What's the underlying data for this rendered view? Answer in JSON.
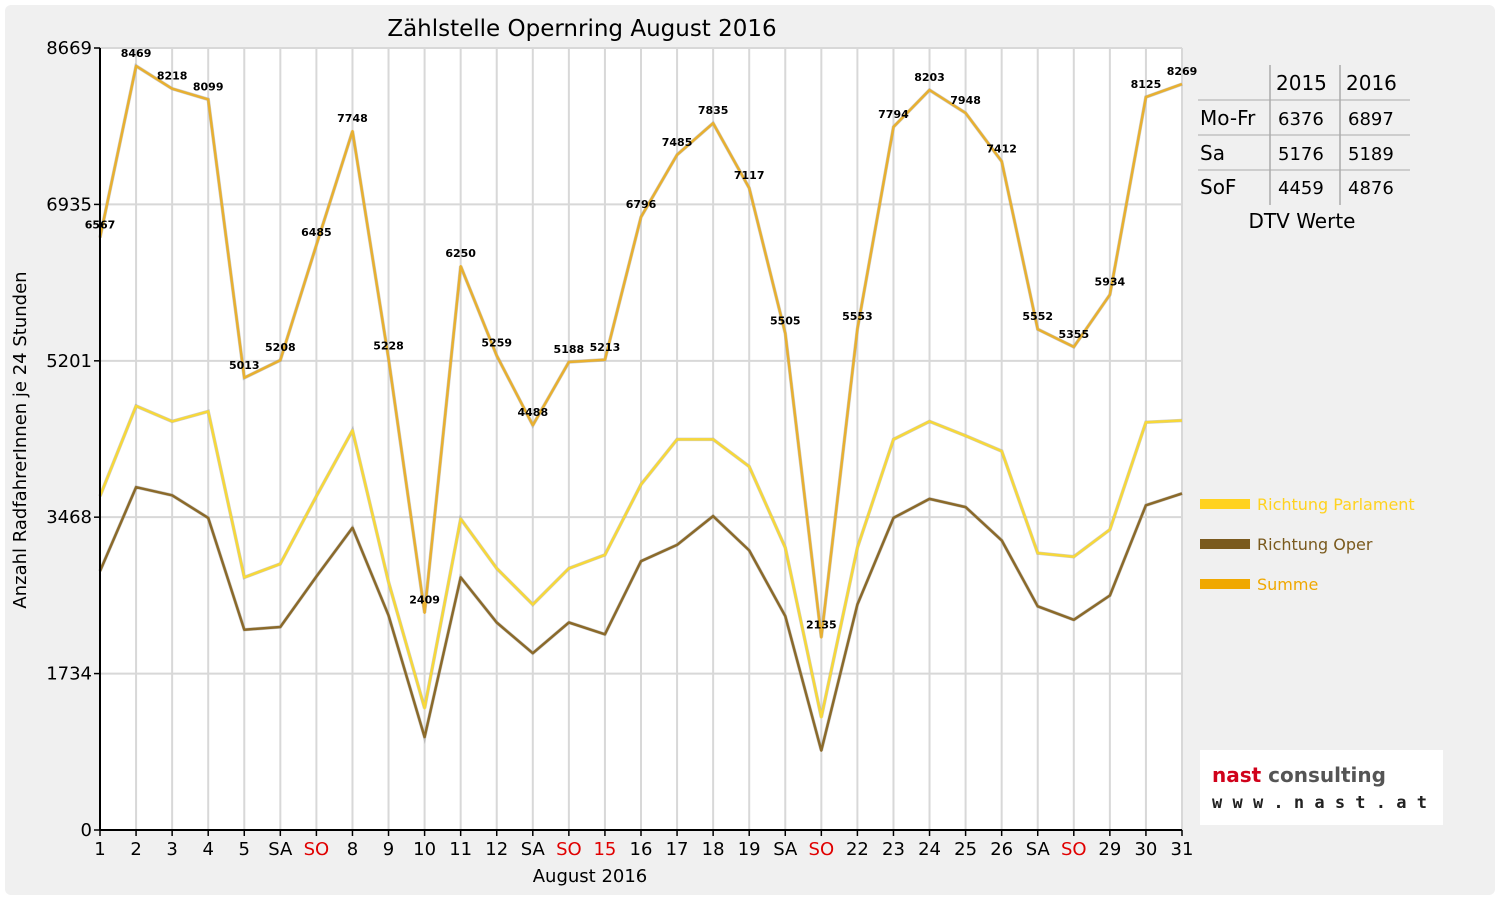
{
  "chart_data": {
    "type": "line",
    "title": "Zählstelle Opernring August 2016",
    "xlabel": "August 2016",
    "ylabel": "Anzahl RadfahrerInnen je 24 Stunden",
    "ylim": [
      0,
      8669
    ],
    "yticks": [
      0,
      1734,
      3468,
      5201,
      6935,
      8669
    ],
    "grid": true,
    "legend_position": "right",
    "categories": [
      "1",
      "2",
      "3",
      "4",
      "5",
      "SA",
      "SO",
      "8",
      "9",
      "10",
      "11",
      "12",
      "SA",
      "SO",
      "15",
      "16",
      "17",
      "18",
      "19",
      "SA",
      "SO",
      "22",
      "23",
      "24",
      "25",
      "26",
      "SA",
      "SO",
      "29",
      "30",
      "31"
    ],
    "category_colors": [
      "#000000",
      "#000000",
      "#000000",
      "#000000",
      "#000000",
      "#000000",
      "#e00000",
      "#000000",
      "#000000",
      "#000000",
      "#000000",
      "#000000",
      "#000000",
      "#e00000",
      "#e00000",
      "#000000",
      "#000000",
      "#000000",
      "#000000",
      "#000000",
      "#e00000",
      "#000000",
      "#000000",
      "#000000",
      "#000000",
      "#000000",
      "#000000",
      "#e00000",
      "#000000",
      "#000000",
      "#000000"
    ],
    "series": [
      {
        "name": "Richtung Parlament",
        "color": "#ffd21f",
        "line_color": "#f7d83a",
        "values": [
          3700,
          4700,
          4530,
          4640,
          2800,
          2950,
          3700,
          4430,
          2750,
          1350,
          3450,
          2900,
          2500,
          2900,
          3050,
          3830,
          4330,
          4330,
          4030,
          3130,
          1250,
          3130,
          4330,
          4530,
          4370,
          4200,
          3070,
          3030,
          3330,
          4520,
          4540
        ]
      },
      {
        "name": "Richtung Oper",
        "color": "#7a5a1e",
        "line_color": "#8b6a2a",
        "values": [
          2870,
          3800,
          3710,
          3460,
          2220,
          2250,
          2810,
          3350,
          2380,
          1030,
          2800,
          2300,
          1960,
          2300,
          2170,
          2980,
          3160,
          3480,
          3100,
          2370,
          880,
          2500,
          3460,
          3670,
          3580,
          3210,
          2480,
          2330,
          2600,
          3600,
          3730
        ]
      },
      {
        "name": "Summe",
        "color": "#f0a800",
        "line_color": "#e8b030",
        "values": [
          6567,
          8469,
          8218,
          8099,
          5013,
          5208,
          6485,
          7748,
          5228,
          2409,
          6250,
          5259,
          4488,
          5188,
          5213,
          6796,
          7485,
          7835,
          7117,
          5505,
          2135,
          5553,
          7794,
          8203,
          7948,
          7412,
          5552,
          5355,
          5934,
          8125,
          8269
        ],
        "labels": [
          "6567",
          "8469",
          "8218",
          "8099",
          "5013",
          "5208",
          "6485",
          "7748",
          "5228",
          "2409",
          "6250",
          "5259",
          "4488",
          "5188",
          "5213",
          "6796",
          "7485",
          "7835",
          "7117",
          "5505",
          "2135",
          "5553",
          "7794",
          "8203",
          "7948",
          "7412",
          "5552",
          "5355",
          "5934",
          "8125",
          "8269"
        ]
      }
    ]
  },
  "dtv_table": {
    "headers": [
      "",
      "2015",
      "2016"
    ],
    "rows": [
      [
        "Mo-Fr",
        "6376",
        "6897"
      ],
      [
        "Sa",
        "5176",
        "5189"
      ],
      [
        "SoF",
        "4459",
        "4876"
      ]
    ],
    "caption": "DTV Werte"
  },
  "logo": {
    "name": "nast consulting",
    "url_text": "w w w . n a s t . a t"
  }
}
